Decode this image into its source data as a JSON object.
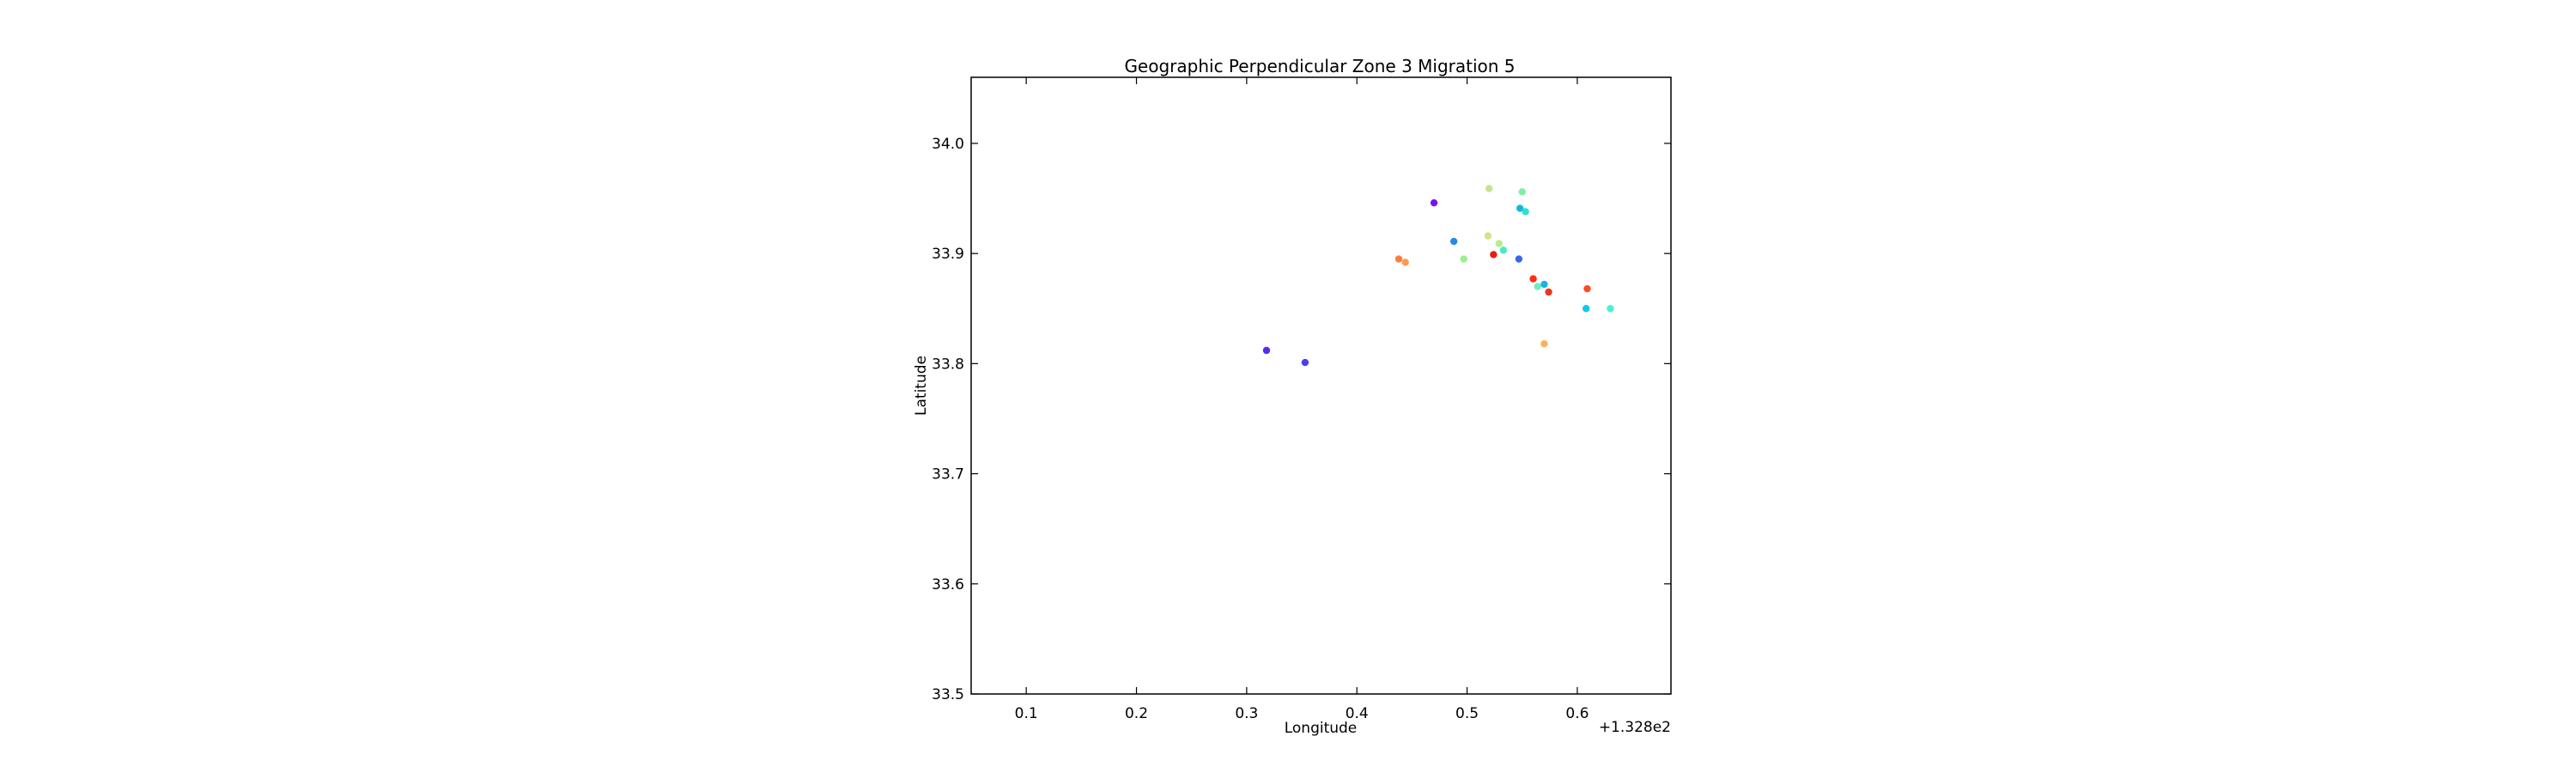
{
  "chart_data": {
    "type": "scatter",
    "title": "Geographic Perpendicular Zone 3 Migration 5",
    "xlabel": "Longitude",
    "ylabel": "Latitude",
    "x_offset_label": "+1.328e2",
    "xlim": [
      0.05,
      0.685
    ],
    "ylim": [
      33.5,
      34.06
    ],
    "xticks": [
      0.1,
      0.2,
      0.3,
      0.4,
      0.5,
      0.6
    ],
    "xtick_labels": [
      "0.1",
      "0.2",
      "0.3",
      "0.4",
      "0.5",
      "0.6"
    ],
    "yticks": [
      33.5,
      33.6,
      33.7,
      33.8,
      33.9,
      34.0
    ],
    "ytick_labels": [
      "33.5",
      "33.6",
      "33.7",
      "33.8",
      "33.9",
      "34.0"
    ],
    "grid": false,
    "points": [
      {
        "x": 0.318,
        "y": 33.812,
        "color": "#5a2ce6"
      },
      {
        "x": 0.353,
        "y": 33.801,
        "color": "#4c3df0"
      },
      {
        "x": 0.438,
        "y": 33.895,
        "color": "#ff7b3e"
      },
      {
        "x": 0.444,
        "y": 33.892,
        "color": "#ff9a50"
      },
      {
        "x": 0.47,
        "y": 33.946,
        "color": "#7a10f0"
      },
      {
        "x": 0.488,
        "y": 33.911,
        "color": "#2a88e0"
      },
      {
        "x": 0.497,
        "y": 33.895,
        "color": "#9af08c"
      },
      {
        "x": 0.519,
        "y": 33.916,
        "color": "#d8e08a"
      },
      {
        "x": 0.52,
        "y": 33.959,
        "color": "#c8e48c"
      },
      {
        "x": 0.524,
        "y": 33.899,
        "color": "#e81c10"
      },
      {
        "x": 0.529,
        "y": 33.909,
        "color": "#b8ec8c"
      },
      {
        "x": 0.533,
        "y": 33.903,
        "color": "#4ee8c4"
      },
      {
        "x": 0.547,
        "y": 33.895,
        "color": "#3a64f0"
      },
      {
        "x": 0.548,
        "y": 33.941,
        "color": "#12b8dc"
      },
      {
        "x": 0.55,
        "y": 33.956,
        "color": "#7ef0a6"
      },
      {
        "x": 0.553,
        "y": 33.938,
        "color": "#2ee0d4"
      },
      {
        "x": 0.56,
        "y": 33.877,
        "color": "#ff2e14"
      },
      {
        "x": 0.564,
        "y": 33.87,
        "color": "#6af0bc"
      },
      {
        "x": 0.57,
        "y": 33.872,
        "color": "#18b4e4"
      },
      {
        "x": 0.57,
        "y": 33.818,
        "color": "#ffae60"
      },
      {
        "x": 0.574,
        "y": 33.865,
        "color": "#ee3418"
      },
      {
        "x": 0.609,
        "y": 33.868,
        "color": "#ff4a24"
      },
      {
        "x": 0.608,
        "y": 33.85,
        "color": "#10c8f0"
      },
      {
        "x": 0.63,
        "y": 33.85,
        "color": "#48f0d4"
      }
    ]
  }
}
